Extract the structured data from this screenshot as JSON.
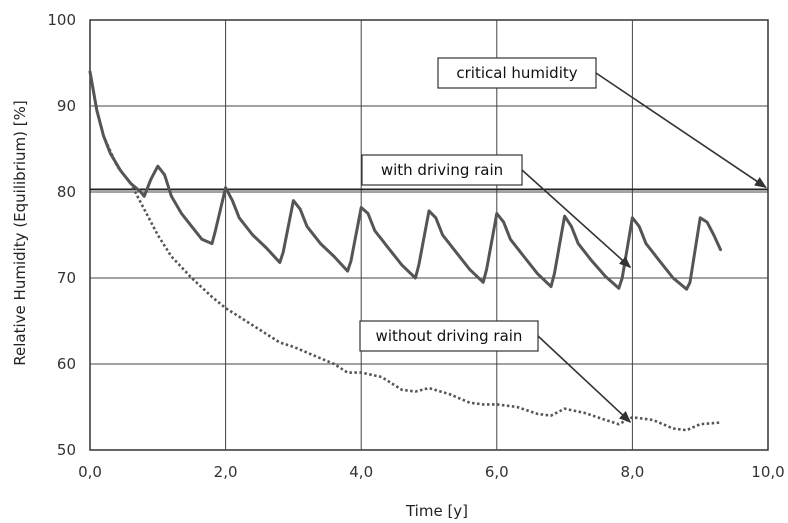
{
  "chart_data": {
    "type": "line",
    "xlabel": "Time [y]",
    "ylabel": "Relative Humidity (Equilibrium) [%]",
    "xlim": [
      0,
      10
    ],
    "ylim": [
      50,
      100
    ],
    "x_ticks": [
      "0,0",
      "2,0",
      "4,0",
      "6,0",
      "8,0",
      "10,0"
    ],
    "y_ticks": [
      "50",
      "60",
      "70",
      "80",
      "90",
      "100"
    ],
    "grid": true,
    "series": [
      {
        "style": "solid",
        "x": [
          0.0,
          0.1,
          0.2,
          0.3,
          0.45,
          0.6,
          0.75,
          0.8,
          0.9,
          1.0,
          1.1,
          1.2,
          1.35,
          1.5,
          1.65,
          1.8,
          1.85,
          2.0,
          2.1,
          2.2,
          2.4,
          2.6,
          2.8,
          2.85,
          3.0,
          3.1,
          3.2,
          3.4,
          3.6,
          3.8,
          3.85,
          4.0,
          4.1,
          4.2,
          4.4,
          4.6,
          4.8,
          4.85,
          5.0,
          5.1,
          5.2,
          5.4,
          5.6,
          5.8,
          5.85,
          6.0,
          6.1,
          6.2,
          6.4,
          6.6,
          6.8,
          6.85,
          7.0,
          7.1,
          7.2,
          7.4,
          7.6,
          7.8,
          7.85,
          8.0,
          8.1,
          8.2,
          8.4,
          8.6,
          8.8,
          8.85,
          9.0,
          9.1,
          9.2,
          9.3
        ],
        "values": [
          94.0,
          89.5,
          86.5,
          84.5,
          82.5,
          81.0,
          80.0,
          79.5,
          81.5,
          83.0,
          82.0,
          79.5,
          77.5,
          76.0,
          74.5,
          74.0,
          75.5,
          80.5,
          79.0,
          77.0,
          75.0,
          73.5,
          71.8,
          73.0,
          79.0,
          78.0,
          76.0,
          74.0,
          72.5,
          70.8,
          72.0,
          78.2,
          77.5,
          75.5,
          73.5,
          71.5,
          70.0,
          71.5,
          77.8,
          77.0,
          75.0,
          73.0,
          71.0,
          69.5,
          71.0,
          77.5,
          76.5,
          74.5,
          72.5,
          70.5,
          69.0,
          70.5,
          77.2,
          76.0,
          74.0,
          72.0,
          70.2,
          68.8,
          70.0,
          77.0,
          76.0,
          74.0,
          72.0,
          70.0,
          68.7,
          69.5,
          77.0,
          76.5,
          75.0,
          73.3
        ]
      },
      {
        "style": "dotted",
        "x": [
          0.0,
          0.1,
          0.2,
          0.4,
          0.6,
          0.8,
          1.0,
          1.2,
          1.5,
          1.8,
          2.0,
          2.2,
          2.5,
          2.8,
          3.0,
          3.3,
          3.6,
          3.8,
          4.0,
          4.3,
          4.6,
          4.8,
          5.0,
          5.3,
          5.6,
          5.8,
          6.0,
          6.3,
          6.6,
          6.8,
          7.0,
          7.3,
          7.6,
          7.8,
          8.0,
          8.3,
          8.6,
          8.8,
          9.0,
          9.3
        ],
        "values": [
          94.0,
          89.5,
          86.5,
          83.0,
          81.0,
          78.0,
          75.0,
          72.5,
          70.0,
          67.8,
          66.5,
          65.5,
          64.0,
          62.5,
          62.0,
          61.0,
          60.0,
          59.0,
          59.0,
          58.5,
          57.0,
          56.8,
          57.2,
          56.5,
          55.5,
          55.3,
          55.3,
          55.0,
          54.2,
          54.0,
          54.8,
          54.3,
          53.5,
          53.0,
          53.8,
          53.5,
          52.5,
          52.3,
          53.0,
          53.2
        ]
      }
    ],
    "reference_line": {
      "y": 80.3
    },
    "annotations": [
      {
        "text": "critical humidity",
        "target": [
          10.0,
          80.3
        ]
      },
      {
        "text": "with driving rain",
        "target": [
          8.0,
          71.0
        ]
      },
      {
        "text": "without driving rain",
        "target": [
          8.0,
          53.0
        ]
      }
    ],
    "colors": {
      "line": "#555555",
      "grid": "#444444",
      "frame": "#333333"
    }
  }
}
